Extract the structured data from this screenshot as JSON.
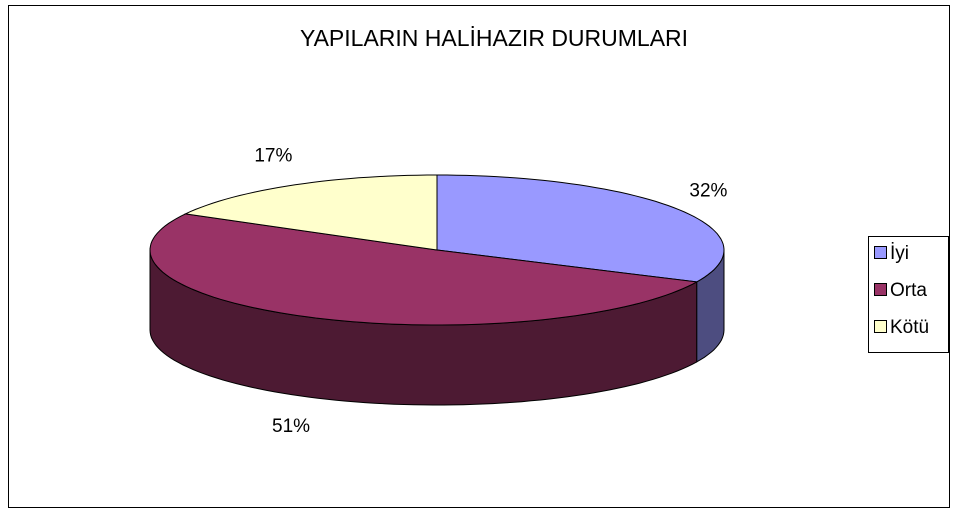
{
  "chart_data": {
    "type": "pie",
    "title": "YAPILARIN HALİHAZIR DURUMLARI",
    "categories": [
      "İyi",
      "Orta",
      "Kötü"
    ],
    "values": [
      32,
      51,
      17
    ],
    "value_labels": [
      "32%",
      "51%",
      "17%"
    ],
    "colors": [
      "#9999ff",
      "#993366",
      "#ffffcc"
    ],
    "legend": "right"
  }
}
